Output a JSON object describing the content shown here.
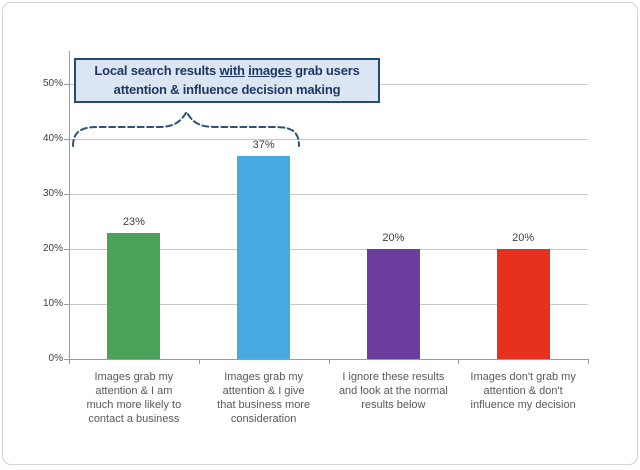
{
  "title_box": {
    "part1": "Local search results ",
    "underline1": "with",
    "sep": " ",
    "underline2": "images",
    "part2": " grab users",
    "line2": "attention & influence decision making"
  },
  "chart_data": {
    "type": "bar",
    "title": "Local search results with images grab users attention & influence decision making",
    "title_underlined_words": [
      "with",
      "images"
    ],
    "categories": [
      "Images grab my attention & I am much more likely to contact a business",
      "Images grab my attention & I give that business more consideration",
      "I ignore these results and look at the normal results below",
      "Images don't grab my attention & don't influence my decision"
    ],
    "category_labels_wrapped": [
      "Images grab my\nattention & I am\nmuch more likely to\ncontact a business",
      "Images grab my\nattention & I give\nthat business more\nconsideration",
      "I ignore these results\nand look at the normal\nresults below",
      "Images don't grab my\nattention & don't\ninfluence my decision"
    ],
    "values": [
      23,
      37,
      20,
      20
    ],
    "value_labels": [
      "23%",
      "37%",
      "20%",
      "20%"
    ],
    "bar_colors": [
      "#4BA35A",
      "#47ABE1",
      "#6A3D9E",
      "#E8301F"
    ],
    "y_tick_labels": [
      "0%",
      "10%",
      "20%",
      "30%",
      "40%",
      "50%"
    ],
    "ylim": [
      0,
      50
    ],
    "xlabel": "",
    "ylabel": "",
    "grid": true,
    "legend": false,
    "annotation": "dashed curly brace grouping the first two bars beneath the title box"
  },
  "colors": {
    "grid": "#c8c8c8",
    "axis": "#9b9b9b",
    "value_label": "#404040",
    "category_label": "#595959",
    "brace": "#2b5279",
    "title_text": "#1F3864",
    "title_bg": "#DCE6F2",
    "title_border": "#1F4E79"
  }
}
